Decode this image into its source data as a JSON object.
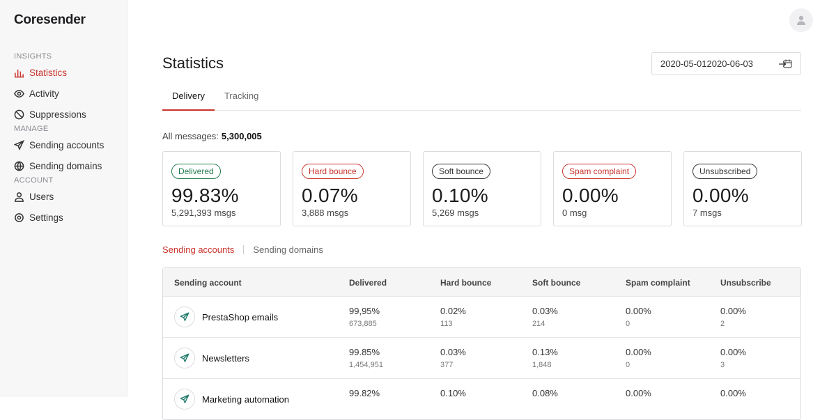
{
  "sidebar": {
    "brand": "Coresender",
    "sections": [
      {
        "title": "INSIGHTS",
        "items": [
          "Statistics",
          "Activity",
          "Suppressions"
        ]
      },
      {
        "title": "MANAGE",
        "items": [
          "Sending accounts",
          "Sending domains"
        ]
      },
      {
        "title": "ACCOUNT",
        "items": [
          "Users",
          "Settings"
        ]
      }
    ]
  },
  "header": {
    "title": "Statistics",
    "date_from": "2020-05-01",
    "date_to": "2020-06-03"
  },
  "tabs": [
    "Delivery",
    "Tracking"
  ],
  "summary": {
    "label": "All messages:",
    "value": "5,300,005"
  },
  "cards": [
    {
      "badge": "Delivered",
      "color": "#1f7a4d",
      "value": "99.83%",
      "sub": "5,291,393 msgs"
    },
    {
      "badge": "Hard bounce",
      "color": "#c8332b",
      "value": "0.07%",
      "sub": "3,888 msgs"
    },
    {
      "badge": "Soft bounce",
      "color": "#333333",
      "value": "0.10%",
      "sub": "5,269 msgs"
    },
    {
      "badge": "Spam complaint",
      "color": "#c8332b",
      "value": "0.00%",
      "sub": "0 msg"
    },
    {
      "badge": "Unsubscribed",
      "color": "#333333",
      "value": "0.00%",
      "sub": "7 msgs"
    }
  ],
  "subtabs": [
    "Sending accounts",
    "Sending domains"
  ],
  "table": {
    "columns": [
      "Sending account",
      "Delivered",
      "Hard bounce",
      "Soft bounce",
      "Spam complaint",
      "Unsubscribe"
    ],
    "rows": [
      {
        "name": "PrestaShop emails",
        "cells": [
          [
            "99,95%",
            "673,885"
          ],
          [
            "0.02%",
            "113"
          ],
          [
            "0.03%",
            "214"
          ],
          [
            "0.00%",
            "0"
          ],
          [
            "0.00%",
            "2"
          ]
        ]
      },
      {
        "name": "Newsletters",
        "cells": [
          [
            "99.85%",
            "1,454,951"
          ],
          [
            "0.03%",
            "377"
          ],
          [
            "0.13%",
            "1,848"
          ],
          [
            "0.00%",
            "0"
          ],
          [
            "0.00%",
            "3"
          ]
        ]
      },
      {
        "name": "Marketing automation",
        "cells": [
          [
            "99.82%"
          ],
          [
            "0.10%"
          ],
          [
            "0.08%"
          ],
          [
            "0.00%"
          ],
          [
            "0.00%"
          ]
        ]
      }
    ]
  }
}
